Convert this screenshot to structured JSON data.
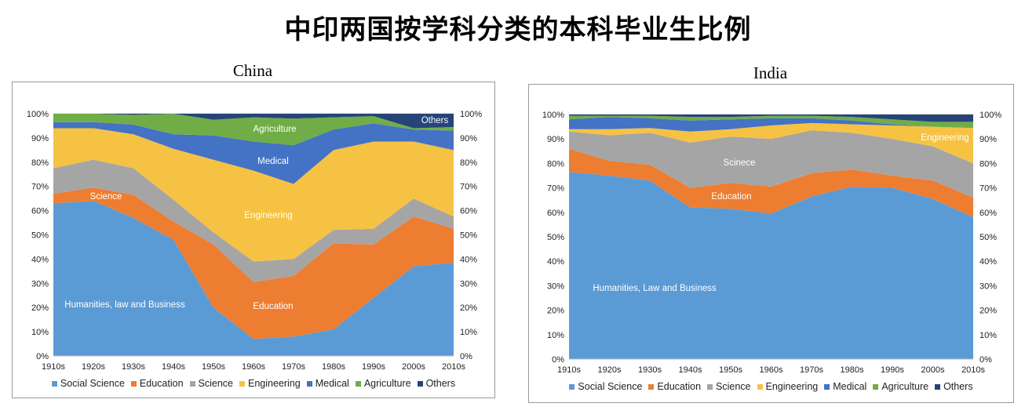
{
  "title": "中印两国按学科分类的本科毕业生比例",
  "series_colors": {
    "Social Science": "#5b9bd5",
    "Education": "#ed7d31",
    "Science": "#a5a5a5",
    "Engineering": "#f5c243",
    "Medical": "#4472c4",
    "Agriculture": "#70ad47",
    "Others": "#264478"
  },
  "chart_data": [
    {
      "type": "area",
      "stacked": true,
      "title": "China",
      "categories": [
        "1910s",
        "1920s",
        "1930s",
        "1940s",
        "1950s",
        "1960s",
        "1970s",
        "1980s",
        "1990s",
        "2000s",
        "2010s"
      ],
      "ylim": [
        0,
        100
      ],
      "yticks": [
        "0%",
        "10%",
        "20%",
        "30%",
        "40%",
        "50%",
        "60%",
        "70%",
        "80%",
        "90%",
        "100%"
      ],
      "series": [
        {
          "name": "Social Science",
          "values": [
            63,
            64,
            57,
            48,
            20,
            7,
            8,
            11,
            24,
            37,
            38.5
          ]
        },
        {
          "name": "Education",
          "values": [
            4,
            5.5,
            9.5,
            7.5,
            26,
            23.5,
            25,
            35.5,
            22,
            20.5,
            14
          ]
        },
        {
          "name": "Science",
          "values": [
            10.5,
            11.5,
            11,
            9,
            5,
            8.5,
            7,
            5.5,
            6.5,
            7.5,
            5
          ]
        },
        {
          "name": "Engineering",
          "values": [
            16.5,
            13,
            14,
            21,
            30,
            37.5,
            31,
            33,
            36,
            23.5,
            27.5
          ]
        },
        {
          "name": "Medical",
          "values": [
            2.5,
            2.5,
            4,
            6,
            10,
            12,
            16,
            8.5,
            7.5,
            5,
            8
          ]
        },
        {
          "name": "Agriculture",
          "values": [
            3.5,
            3.5,
            4,
            8.5,
            6.5,
            10,
            11,
            5,
            3,
            0.5,
            1.5
          ]
        },
        {
          "name": "Others",
          "values": [
            0,
            0,
            0.5,
            0,
            2.5,
            1.5,
            2,
            1.5,
            1,
            6,
            5.5
          ]
        }
      ],
      "labels": [
        "Agriculture",
        "Medical",
        "Science",
        "Engineering",
        "Education",
        "Humanities, law and Business",
        "Others"
      ]
    },
    {
      "type": "area",
      "stacked": true,
      "title": "India",
      "categories": [
        "1910s",
        "1920s",
        "1930s",
        "1940s",
        "1950s",
        "1960s",
        "1970s",
        "1980s",
        "1990s",
        "2000s",
        "2010s"
      ],
      "ylim": [
        0,
        100
      ],
      "yticks": [
        "0%",
        "10%",
        "20%",
        "30%",
        "40%",
        "50%",
        "60%",
        "70%",
        "80%",
        "90%",
        "100%"
      ],
      "series": [
        {
          "name": "Social Science",
          "values": [
            76.5,
            75,
            73,
            62,
            61.5,
            59.5,
            66.5,
            70.5,
            70,
            65.5,
            58
          ]
        },
        {
          "name": "Education",
          "values": [
            9.5,
            6,
            6.5,
            8,
            10.5,
            11,
            9.5,
            7,
            5,
            7.5,
            8
          ]
        },
        {
          "name": "Science",
          "values": [
            7,
            10.5,
            13,
            18.5,
            19,
            19.5,
            17.5,
            15,
            15,
            14,
            14
          ]
        },
        {
          "name": "Engineering",
          "values": [
            1,
            2.5,
            2,
            4.5,
            3,
            5.5,
            3,
            3.5,
            5.5,
            8,
            14.5
          ]
        },
        {
          "name": "Medical",
          "values": [
            4,
            5,
            4,
            4.5,
            4,
            3,
            2,
            1.5,
            0.5,
            0,
            0
          ]
        },
        {
          "name": "Agriculture",
          "values": [
            1.5,
            0.5,
            1,
            1.5,
            1,
            1,
            1,
            1.5,
            2,
            2,
            2.5
          ]
        },
        {
          "name": "Others",
          "values": [
            0.5,
            0.5,
            0.5,
            1,
            1,
            0.5,
            0.5,
            1,
            2,
            3,
            3
          ]
        }
      ],
      "labels": [
        "Engineering",
        "Scinece",
        "Education",
        "Humanities, Law and Business"
      ]
    }
  ],
  "legend": [
    "Social Science",
    "Education",
    "Science",
    "Engineering",
    "Medical",
    "Agriculture",
    "Others"
  ]
}
